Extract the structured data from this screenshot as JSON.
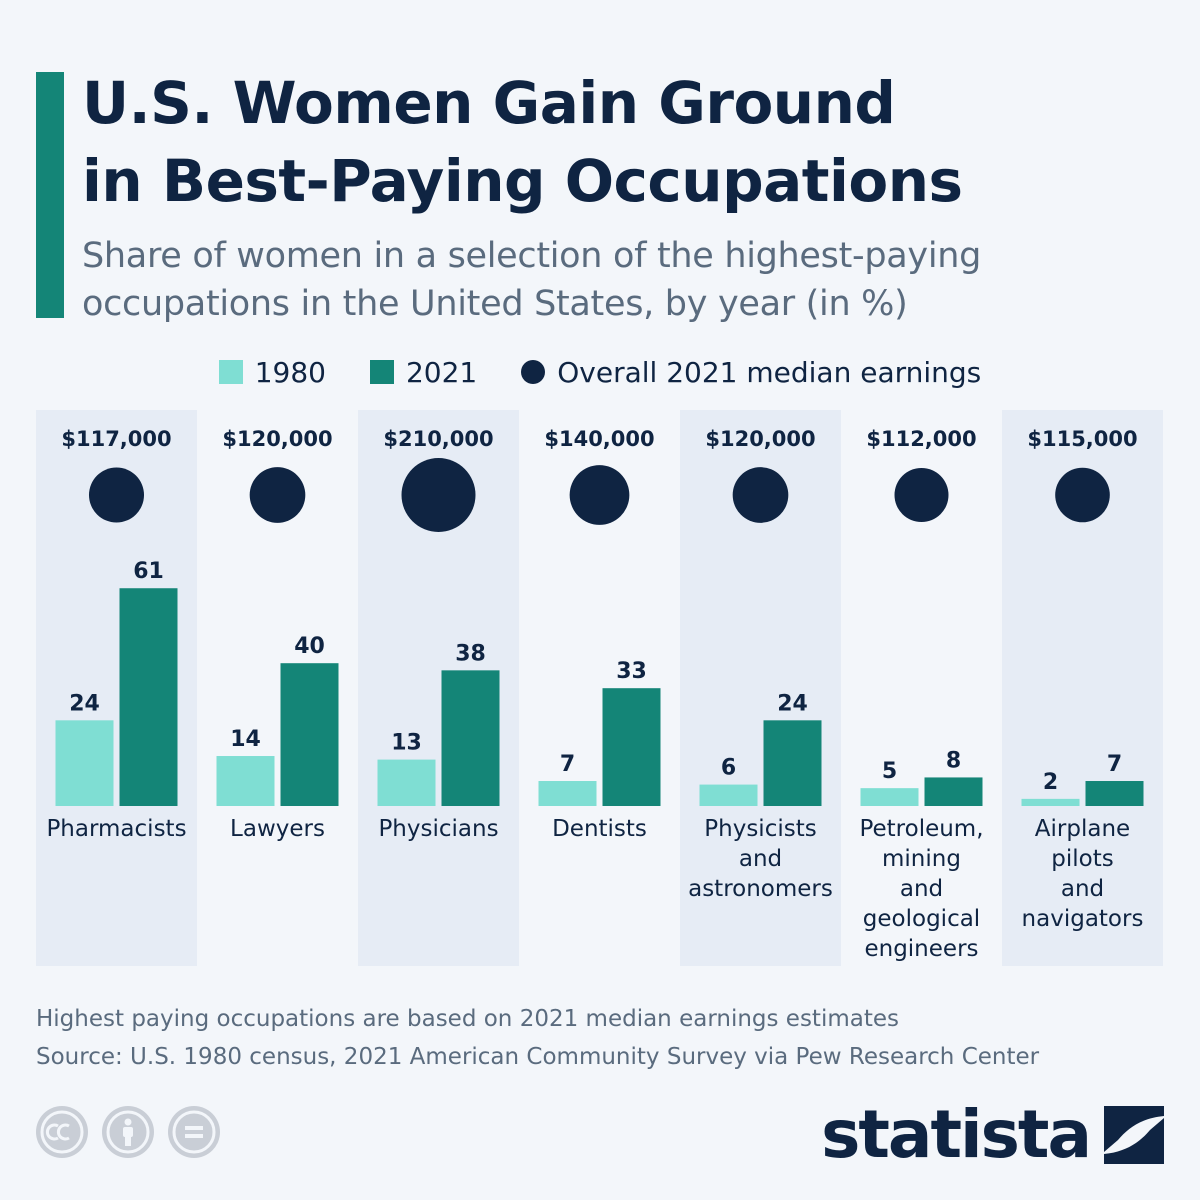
{
  "header": {
    "title_line1": "U.S. Women Gain Ground",
    "title_line2": "in Best-Paying Occupations",
    "subtitle_line1": "Share of women in a selection of the highest-paying",
    "subtitle_line2": "occupations in the United States, by year (in %)"
  },
  "legend": {
    "items": [
      {
        "label": "1980",
        "color": "#7fded3",
        "shape": "square"
      },
      {
        "label": "2021",
        "color": "#148577",
        "shape": "square"
      },
      {
        "label": "Overall 2021 median earnings",
        "color": "#0f2442",
        "shape": "circle"
      }
    ]
  },
  "chart_data": {
    "type": "bar",
    "categories": [
      [
        "Pharmacists"
      ],
      [
        "Lawyers"
      ],
      [
        "Physicians"
      ],
      [
        "Dentists"
      ],
      [
        "Physicists",
        "and",
        "astronomers"
      ],
      [
        "Petroleum,",
        "mining",
        "and",
        "geological",
        "engineers"
      ],
      [
        "Airplane",
        "pilots",
        "and",
        "navigators"
      ]
    ],
    "series": [
      {
        "name": "1980",
        "color": "#7fded3",
        "values": [
          24,
          14,
          13,
          7,
          6,
          5,
          2
        ]
      },
      {
        "name": "2021",
        "color": "#148577",
        "values": [
          61,
          40,
          38,
          33,
          24,
          8,
          7
        ]
      }
    ],
    "earnings": {
      "name": "Overall 2021 median earnings",
      "color": "#0f2442",
      "values": [
        117000,
        120000,
        210000,
        140000,
        120000,
        112000,
        115000
      ],
      "labels": [
        "$117,000",
        "$120,000",
        "$210,000",
        "$140,000",
        "$120,000",
        "$112,000",
        "$115,000"
      ]
    },
    "ylim": [
      0,
      61
    ],
    "alternating_column_shading": true
  },
  "footer": {
    "note": "Highest paying occupations are based on 2021 median earnings estimates",
    "source": "Source: U.S. 1980 census, 2021 American Community Survey via Pew Research Center",
    "brand": "statista",
    "license_icons": [
      "cc-icon",
      "attribution-icon",
      "no-derivatives-icon"
    ]
  },
  "colors": {
    "background": "#f3f6fa",
    "column_shade": "#e6ecf5",
    "accent": "#148577",
    "text_dark": "#0f2442",
    "text_muted": "#5a6b7e"
  }
}
